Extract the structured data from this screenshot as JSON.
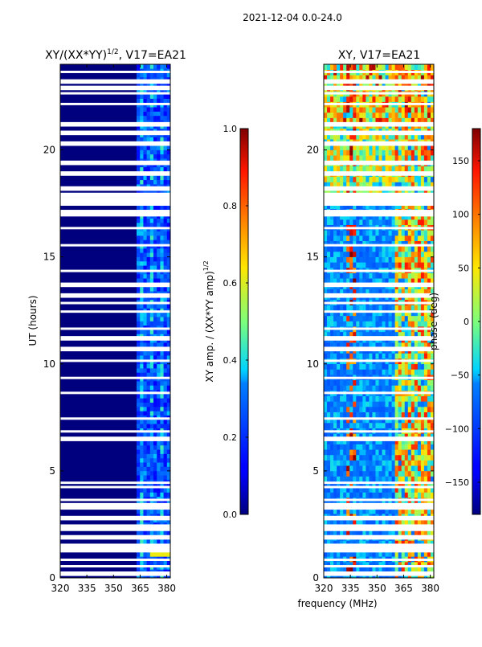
{
  "page": {
    "date_label": "2021-12-04 0.0-24.0",
    "shared_xlabel": "frequency (MHz)"
  },
  "colors": {
    "jet_low": "#00007f",
    "jet_high": "#7f0000",
    "flag_gap": "#ffffff"
  },
  "chart_data": [
    {
      "type": "heatmap",
      "title": "XY/(XX*YY)",
      "title_superscript": "1/2",
      "title_suffix": ", V17=EA21",
      "xlabel": "",
      "ylabel": "UT (hours)",
      "xlim": [
        320,
        382
      ],
      "ylim": [
        0,
        24
      ],
      "x_ticks": [
        "320",
        "335",
        "350",
        "365",
        "380"
      ],
      "x_tick_values": [
        320,
        335,
        350,
        365,
        380
      ],
      "y_ticks": [
        "0",
        "5",
        "10",
        "15",
        "20"
      ],
      "y_tick_values": [
        0,
        5,
        10,
        15,
        20
      ],
      "colormap": "jet",
      "description_values": {
        "background_level": 0.0,
        "active_band_mhz": [
          363,
          382
        ],
        "active_band_level": [
          0.15,
          0.45
        ]
      },
      "colorbar": {
        "label": "XY amp. / (XX*YY amp)",
        "label_superscript": "1/2",
        "range": [
          0.0,
          1.0
        ],
        "ticks": [
          "0.0",
          "0.2",
          "0.4",
          "0.6",
          "0.8",
          "1.0"
        ],
        "tick_values": [
          0.0,
          0.2,
          0.4,
          0.6,
          0.8,
          1.0
        ]
      }
    },
    {
      "type": "heatmap",
      "title": "XY, V17=EA21",
      "xlabel": "frequency (MHz)",
      "ylabel": "",
      "xlim": [
        320,
        382
      ],
      "ylim": [
        0,
        24
      ],
      "x_ticks": [
        "320",
        "335",
        "350",
        "365",
        "380"
      ],
      "x_tick_values": [
        320,
        335,
        350,
        365,
        380
      ],
      "y_ticks": [
        "0",
        "5",
        "10",
        "15",
        "20"
      ],
      "y_tick_values": [
        0,
        5,
        10,
        15,
        20
      ],
      "colormap": "jet",
      "colorbar": {
        "label": "phase (deg)",
        "range": [
          -180,
          180
        ],
        "ticks": [
          "−150",
          "−100",
          "−50",
          "0",
          "50",
          "100",
          "150"
        ],
        "tick_values": [
          -150,
          -100,
          -50,
          0,
          50,
          100,
          150
        ]
      }
    }
  ]
}
